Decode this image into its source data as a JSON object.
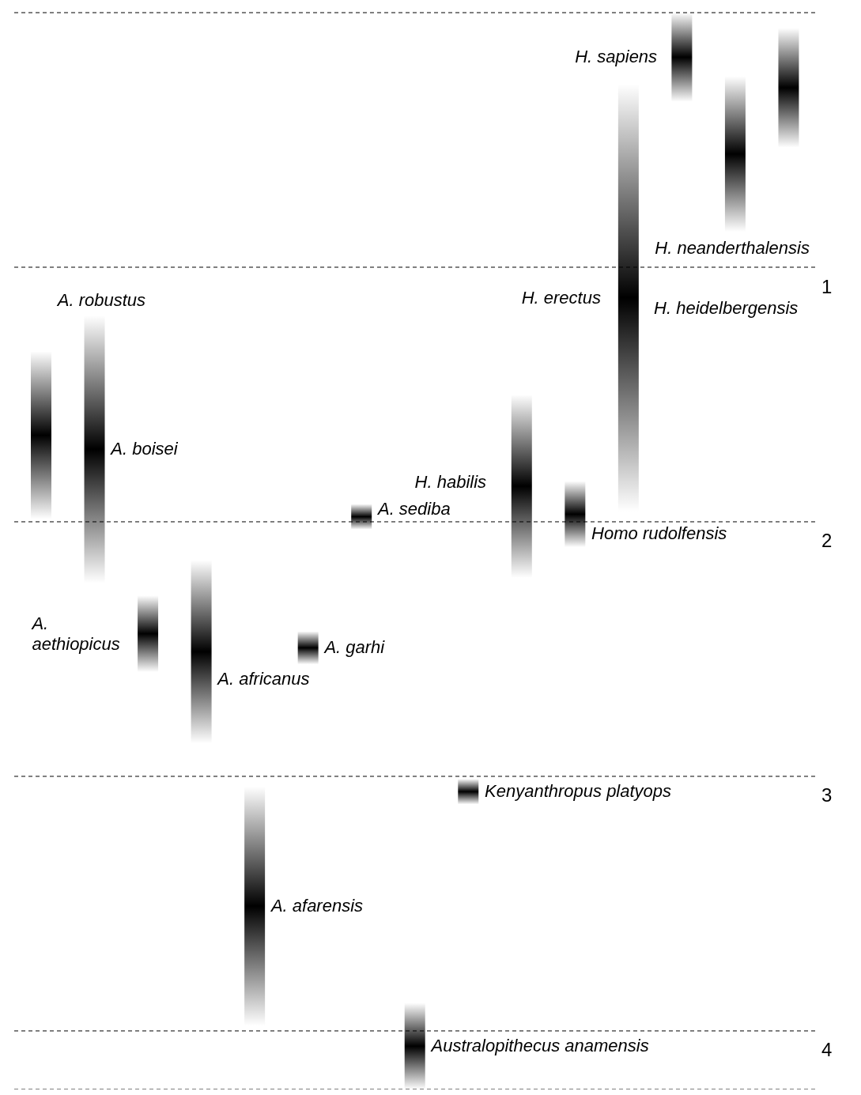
{
  "chart_data": {
    "type": "bar",
    "categories": [
      null,
      null,
      null,
      null,
      null,
      null,
      null,
      null,
      null,
      null,
      null,
      null,
      null,
      null,
      null
    ],
    "base": [
      1.33,
      1.19,
      2.29,
      2.15,
      3.04,
      2.43,
      1.93,
      3.89,
      3.01,
      1.5,
      1.84,
      0.28,
      0,
      0.25,
      0.06
    ],
    "values": [
      0.66,
      1.05,
      0.3,
      0.72,
      0.94,
      0.13,
      0.1,
      0.34,
      0.1,
      0.72,
      0.26,
      1.68,
      0.35,
      0.61,
      0.47
    ],
    "annotations": [
      "A. robustus",
      "A. boisei",
      "A. aethiopicus",
      "A. africanus",
      "A. afarensis",
      "A. garhi",
      "A. sediba",
      "Australopithecus anamensis",
      "Kenyanthropus platyops",
      "H. habilis",
      "Homo rudolfensis",
      "H. erectus",
      "H. sapiens",
      "H. heidelbergensis",
      "H. neanderthalensis"
    ],
    "color": "#000000",
    "ylim": [
      4.23,
      0
    ],
    "yticks": [
      {
        "value": 0,
        "label": null
      },
      1,
      2,
      3,
      4
    ],
    "grid": "y"
  }
}
